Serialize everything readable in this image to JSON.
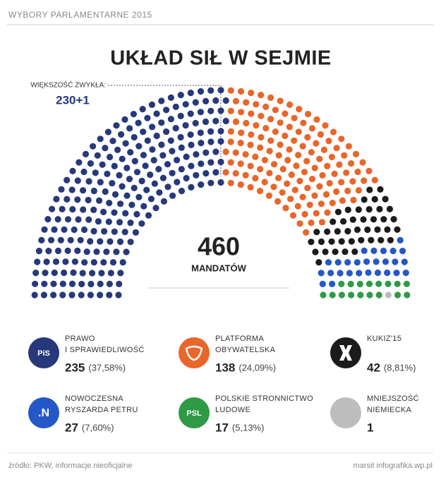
{
  "chart_data": {
    "type": "parliament",
    "header": "WYBORY PARLAMENTARNE 2015",
    "title": "UKŁAD SIŁ W SEJMIE",
    "majority_label": "WIĘKSZOŚĆ ZWYKŁA:",
    "majority": "230+1",
    "total": 460,
    "total_label": "MANDATÓW",
    "series": [
      {
        "name": "PRAWO\nI SPRAWIEDLIWOŚĆ",
        "color": "#27397a",
        "values": [
          235
        ],
        "share": "(37,58%)",
        "logo": "PiS"
      },
      {
        "name": "PLATFORMA\nOBYWATELSKA",
        "color": "#e8662a",
        "values": [
          138
        ],
        "share": "(24,09%)"
      },
      {
        "name": "KUKIZ'15",
        "color": "#1b1b1b",
        "values": [
          42
        ],
        "share": "(8,81%)"
      },
      {
        "name": "NOWOCZESNA\nRYSZARDA PETRU",
        "color": "#2458c6",
        "values": [
          27
        ],
        "share": "(7,60%)",
        "logo": ".N"
      },
      {
        "name": "POLSKIE STRONNICTWO\nLUDOWE",
        "color": "#2f9a45",
        "values": [
          17
        ],
        "share": "(5,13%)",
        "logo": "PSL"
      },
      {
        "name": "MNIEJSZOŚĆ\nNIEMIECKA",
        "color": "#bdbdbd",
        "values": [
          1
        ]
      }
    ],
    "source": "źródło: PKW, informacje nieoficjalne",
    "credit": "marsit infografika.wp.pl"
  }
}
